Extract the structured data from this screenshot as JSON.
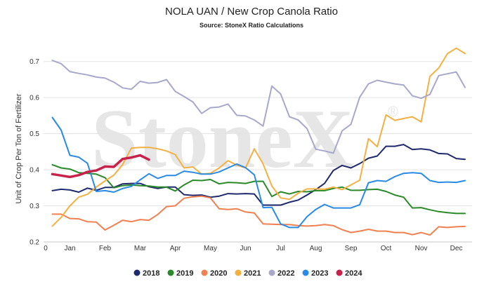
{
  "chart_data": {
    "type": "line",
    "title": "NOLA UAN / New Crop Canola Ratio",
    "subtitle": "Source: StoneX Ratio Calculations",
    "ylabel": "Unit of Crop Per Ton of Fertilizer",
    "xlabel": "",
    "x_origin_label": "0",
    "watermark": "StoneX",
    "watermark_mark": "®",
    "ylim": [
      0.2,
      0.75
    ],
    "xlim": [
      0,
      12.2
    ],
    "yticks": [
      "0.2",
      "0.3",
      "0.4",
      "0.5",
      "0.6",
      "0.7"
    ],
    "ytick_values": [
      0.2,
      0.3,
      0.4,
      0.5,
      0.6,
      0.7
    ],
    "xticks": [
      "Jan",
      "Feb",
      "Mar",
      "Apr",
      "May",
      "Jun",
      "Jul",
      "Aug",
      "Sep",
      "Oct",
      "Nov",
      "Dec"
    ],
    "xtick_values": [
      0.75,
      1.75,
      2.75,
      3.75,
      4.75,
      5.75,
      6.75,
      7.75,
      8.75,
      9.75,
      10.75,
      11.75
    ],
    "grid": "horizontal",
    "legend": "bottom-center",
    "series": [
      {
        "name": "2018",
        "color": "#1f2a6e",
        "width": 2,
        "x": [
          0.25,
          0.5,
          0.75,
          1.0,
          1.25,
          1.5,
          1.75,
          2.0,
          2.25,
          2.5,
          2.75,
          3.0,
          3.25,
          3.5,
          3.75,
          4.0,
          4.25,
          4.5,
          4.75,
          5.0,
          5.25,
          5.5,
          5.75,
          6.0,
          6.25,
          6.5,
          6.75,
          7.0,
          7.25,
          7.5,
          7.75,
          8.0,
          8.25,
          8.5,
          8.75,
          9.0,
          9.25,
          9.5,
          9.75,
          10.0,
          10.25,
          10.5,
          10.75,
          11.0,
          11.25,
          11.5,
          11.75,
          12.0
        ],
        "y": [
          0.342,
          0.346,
          0.344,
          0.338,
          0.349,
          0.343,
          0.351,
          0.351,
          0.361,
          0.362,
          0.362,
          0.353,
          0.348,
          0.352,
          0.352,
          0.331,
          0.329,
          0.33,
          0.324,
          0.327,
          0.334,
          0.333,
          0.334,
          0.333,
          0.302,
          0.302,
          0.302,
          0.31,
          0.316,
          0.33,
          0.345,
          0.362,
          0.398,
          0.412,
          0.405,
          0.417,
          0.432,
          0.438,
          0.465,
          0.465,
          0.47,
          0.456,
          0.458,
          0.455,
          0.445,
          0.444,
          0.431,
          0.429
        ]
      },
      {
        "name": "2019",
        "color": "#2a8a2a",
        "width": 2,
        "x": [
          0.25,
          0.5,
          0.75,
          1.0,
          1.25,
          1.5,
          1.75,
          2.0,
          2.25,
          2.5,
          2.75,
          3.0,
          3.25,
          3.5,
          3.75,
          4.0,
          4.25,
          4.5,
          4.75,
          5.0,
          5.25,
          5.5,
          5.75,
          6.0,
          6.25,
          6.5,
          6.75,
          7.0,
          7.25,
          7.5,
          7.75,
          8.0,
          8.25,
          8.5,
          8.75,
          9.0,
          9.25,
          9.5,
          9.75,
          10.0,
          10.25,
          10.5,
          10.75,
          11.0,
          11.25,
          11.5,
          11.75,
          12.0
        ],
        "y": [
          0.414,
          0.405,
          0.402,
          0.392,
          0.39,
          0.388,
          0.378,
          0.35,
          0.356,
          0.358,
          0.356,
          0.355,
          0.352,
          0.352,
          0.341,
          0.358,
          0.371,
          0.37,
          0.373,
          0.361,
          0.365,
          0.364,
          0.362,
          0.368,
          0.368,
          0.326,
          0.339,
          0.333,
          0.34,
          0.339,
          0.342,
          0.342,
          0.348,
          0.352,
          0.343,
          0.343,
          0.345,
          0.346,
          0.34,
          0.33,
          0.324,
          0.294,
          0.295,
          0.289,
          0.284,
          0.281,
          0.279,
          0.279
        ]
      },
      {
        "name": "2020",
        "color": "#f08050",
        "width": 2,
        "x": [
          0.25,
          0.5,
          0.75,
          1.0,
          1.25,
          1.5,
          1.75,
          2.0,
          2.25,
          2.5,
          2.75,
          3.0,
          3.25,
          3.5,
          3.75,
          4.0,
          4.25,
          4.5,
          4.75,
          5.0,
          5.25,
          5.5,
          5.75,
          6.0,
          6.25,
          6.5,
          6.75,
          7.0,
          7.25,
          7.5,
          7.75,
          8.0,
          8.25,
          8.5,
          8.75,
          9.0,
          9.25,
          9.5,
          9.75,
          10.0,
          10.25,
          10.5,
          10.75,
          11.0,
          11.25,
          11.5,
          11.75,
          12.0
        ],
        "y": [
          0.277,
          0.277,
          0.265,
          0.264,
          0.256,
          0.255,
          0.233,
          0.246,
          0.26,
          0.256,
          0.262,
          0.26,
          0.276,
          0.298,
          0.3,
          0.321,
          0.325,
          0.327,
          0.322,
          0.292,
          0.29,
          0.292,
          0.283,
          0.28,
          0.25,
          0.249,
          0.248,
          0.248,
          0.245,
          0.244,
          0.245,
          0.248,
          0.245,
          0.234,
          0.226,
          0.23,
          0.235,
          0.23,
          0.23,
          0.226,
          0.226,
          0.22,
          0.226,
          0.219,
          0.242,
          0.24,
          0.242,
          0.243
        ]
      },
      {
        "name": "2021",
        "color": "#f5b042",
        "width": 2,
        "x": [
          0.25,
          0.5,
          0.75,
          1.0,
          1.25,
          1.5,
          1.75,
          2.0,
          2.25,
          2.5,
          2.75,
          3.0,
          3.25,
          3.5,
          3.75,
          4.0,
          4.25,
          4.5,
          4.75,
          5.0,
          5.25,
          5.5,
          5.75,
          6.0,
          6.25,
          6.5,
          6.75,
          7.0,
          7.25,
          7.5,
          7.75,
          8.0,
          8.25,
          8.5,
          8.75,
          9.0,
          9.25,
          9.5,
          9.75,
          10.0,
          10.25,
          10.5,
          10.75,
          11.0,
          11.25,
          11.5,
          11.75,
          12.0
        ],
        "y": [
          0.244,
          0.268,
          0.3,
          0.324,
          0.332,
          0.352,
          0.369,
          0.385,
          0.414,
          0.46,
          0.462,
          0.462,
          0.458,
          0.452,
          0.442,
          0.405,
          0.408,
          0.388,
          0.39,
          0.405,
          0.425,
          0.413,
          0.405,
          0.458,
          0.416,
          0.355,
          0.322,
          0.318,
          0.335,
          0.347,
          0.347,
          0.346,
          0.352,
          0.345,
          0.358,
          0.371,
          0.486,
          0.464,
          0.552,
          0.537,
          0.542,
          0.547,
          0.533,
          0.659,
          0.682,
          0.722,
          0.737,
          0.722
        ]
      },
      {
        "name": "2022",
        "color": "#a7a8cc",
        "width": 2,
        "x": [
          0.25,
          0.5,
          0.75,
          1.0,
          1.25,
          1.5,
          1.75,
          2.0,
          2.25,
          2.5,
          2.75,
          3.0,
          3.25,
          3.5,
          3.75,
          4.0,
          4.25,
          4.5,
          4.75,
          5.0,
          5.25,
          5.5,
          5.75,
          6.0,
          6.25,
          6.5,
          6.75,
          7.0,
          7.25,
          7.5,
          7.75,
          8.0,
          8.25,
          8.5,
          8.75,
          9.0,
          9.25,
          9.5,
          9.75,
          10.0,
          10.25,
          10.5,
          10.75,
          11.0,
          11.25,
          11.5,
          11.75,
          12.0
        ],
        "y": [
          0.703,
          0.694,
          0.672,
          0.667,
          0.663,
          0.657,
          0.654,
          0.643,
          0.627,
          0.623,
          0.645,
          0.64,
          0.642,
          0.65,
          0.617,
          0.603,
          0.588,
          0.556,
          0.572,
          0.574,
          0.582,
          0.551,
          0.549,
          0.538,
          0.521,
          0.632,
          0.61,
          0.547,
          0.538,
          0.514,
          0.457,
          0.452,
          0.446,
          0.508,
          0.526,
          0.601,
          0.638,
          0.648,
          0.643,
          0.638,
          0.635,
          0.605,
          0.598,
          0.609,
          0.661,
          0.666,
          0.671,
          0.628
        ]
      },
      {
        "name": "2023",
        "color": "#2a8ae8",
        "width": 2,
        "x": [
          0.25,
          0.5,
          0.75,
          1.0,
          1.25,
          1.5,
          1.75,
          2.0,
          2.25,
          2.5,
          2.75,
          3.0,
          3.25,
          3.5,
          3.75,
          4.0,
          4.25,
          4.5,
          4.75,
          5.0,
          5.25,
          5.5,
          5.75,
          6.0,
          6.25,
          6.5,
          6.75,
          7.0,
          7.25,
          7.5,
          7.75,
          8.0,
          8.25,
          8.5,
          8.75,
          9.0,
          9.25,
          9.5,
          9.75,
          10.0,
          10.25,
          10.5,
          10.75,
          11.0,
          11.25,
          11.5,
          11.75,
          12.0
        ],
        "y": [
          0.545,
          0.51,
          0.44,
          0.435,
          0.418,
          0.34,
          0.342,
          0.338,
          0.348,
          0.354,
          0.372,
          0.389,
          0.376,
          0.384,
          0.384,
          0.396,
          0.393,
          0.388,
          0.388,
          0.394,
          0.405,
          0.416,
          0.406,
          0.386,
          0.295,
          0.296,
          0.25,
          0.24,
          0.24,
          0.27,
          0.29,
          0.304,
          0.294,
          0.294,
          0.294,
          0.303,
          0.364,
          0.37,
          0.368,
          0.381,
          0.39,
          0.392,
          0.39,
          0.37,
          0.365,
          0.366,
          0.365,
          0.37
        ]
      },
      {
        "name": "2024",
        "color": "#c8224a",
        "width": 3.5,
        "x": [
          0.25,
          0.5,
          0.75,
          1.0,
          1.25,
          1.5,
          1.75,
          2.0,
          2.25,
          2.5,
          2.75,
          3.0
        ],
        "y": [
          0.388,
          0.384,
          0.38,
          0.385,
          0.394,
          0.398,
          0.409,
          0.408,
          0.43,
          0.434,
          0.44,
          0.428
        ]
      }
    ]
  }
}
